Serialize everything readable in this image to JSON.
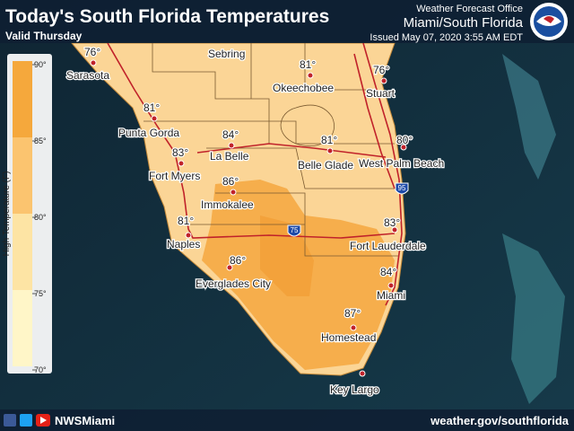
{
  "header": {
    "title": "Today's South Florida Temperatures",
    "subtitle": "Valid Thursday",
    "office": "Weather Forecast Office",
    "region": "Miami/South Florida",
    "issued": "Issued May 07, 2020 3:55 AM EDT"
  },
  "legend": {
    "title": "High Temperature (F)",
    "ticks": [
      "90°",
      "85°",
      "80°",
      "75°",
      "70°"
    ]
  },
  "cities": [
    {
      "name": "Sarasota",
      "temp": "76°"
    },
    {
      "name": "Sebring"
    },
    {
      "name": "Okeechobee",
      "temp": "81°"
    },
    {
      "name": "Stuart",
      "temp": "76°"
    },
    {
      "name": "Punta Gorda",
      "temp": "81°"
    },
    {
      "name": "La Belle",
      "temp": "84°"
    },
    {
      "name": "Belle Glade",
      "temp": "81°"
    },
    {
      "name": "West Palm Beach",
      "temp": "80°"
    },
    {
      "name": "Fort Myers",
      "temp": "83°"
    },
    {
      "name": "Immokalee",
      "temp": "86°"
    },
    {
      "name": "Naples",
      "temp": "81°"
    },
    {
      "name": "Fort Lauderdale",
      "temp": "83°"
    },
    {
      "name": "Everglades City",
      "temp": "86°"
    },
    {
      "name": "Miami",
      "temp": "84°"
    },
    {
      "name": "Homestead",
      "temp": "87°"
    },
    {
      "name": "Key Largo"
    }
  ],
  "highways": [
    "95",
    "75"
  ],
  "footer": {
    "social": "NWSMiami",
    "website": "weather.gov/southflorida"
  }
}
